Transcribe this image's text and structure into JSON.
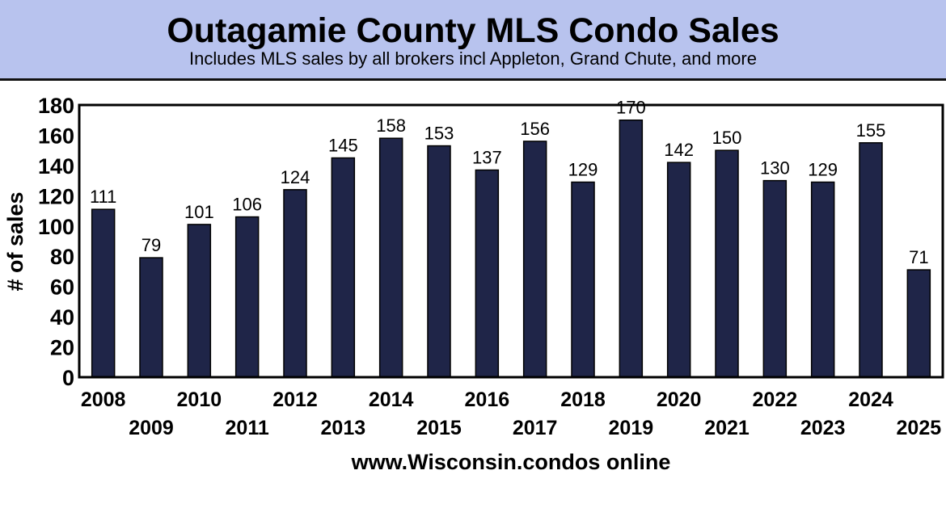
{
  "chart_data": {
    "type": "bar",
    "title": "Outagamie County MLS Condo Sales",
    "subtitle": "Includes MLS sales by all brokers incl Appleton, Grand Chute, and more",
    "xlabel": "www.Wisconsin.condos online",
    "ylabel": "# of sales",
    "categories": [
      "2008",
      "2009",
      "2010",
      "2011",
      "2012",
      "2013",
      "2014",
      "2015",
      "2016",
      "2017",
      "2018",
      "2019",
      "2020",
      "2021",
      "2022",
      "2023",
      "2024",
      "2025"
    ],
    "values": [
      111,
      79,
      101,
      106,
      124,
      145,
      158,
      153,
      137,
      156,
      129,
      170,
      142,
      150,
      130,
      129,
      155,
      71
    ],
    "ylim": [
      0,
      180
    ],
    "yticks": [
      0,
      20,
      40,
      60,
      80,
      100,
      120,
      140,
      160,
      180
    ],
    "grid": false,
    "data_labels": true,
    "colors": {
      "bar": "#1f2548",
      "header": "#b8c3ee"
    }
  }
}
